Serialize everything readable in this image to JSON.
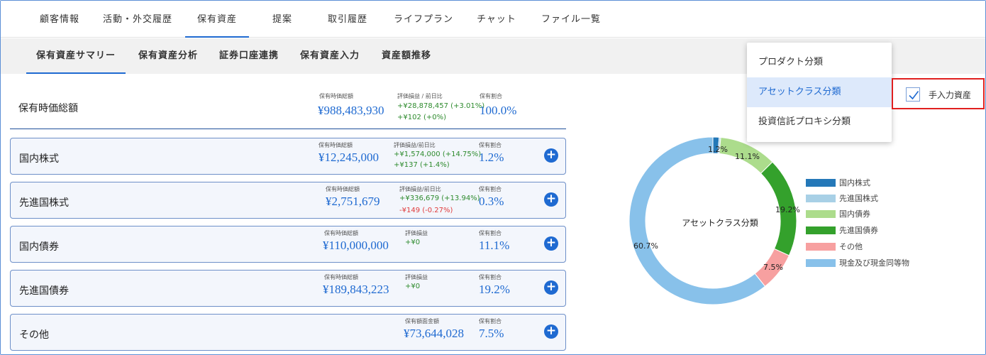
{
  "top_tabs": [
    {
      "label": "顧客情報"
    },
    {
      "label": "活動・外交履歴"
    },
    {
      "label": "保有資産"
    },
    {
      "label": "提案"
    },
    {
      "label": "取引履歴"
    },
    {
      "label": "ライフプラン"
    },
    {
      "label": "チャット"
    },
    {
      "label": "ファイル一覧"
    }
  ],
  "sub_tabs": [
    {
      "label": "保有資産サマリー"
    },
    {
      "label": "保有資産分析"
    },
    {
      "label": "証券口座連携"
    },
    {
      "label": "保有資産入力"
    },
    {
      "label": "資産額推移"
    }
  ],
  "total": {
    "label": "保有時価総額",
    "value_caption": "保有時価総額",
    "value": "¥988,483,930",
    "gain_caption": "評価損益 / 前日比",
    "gain": "+¥28,878,457 (+3.01%)",
    "daily": "+¥102 (+0%)",
    "ratio_caption": "保有割合",
    "ratio": "100.0%"
  },
  "assets": [
    {
      "label": "国内株式",
      "value_caption": "保有時価総額",
      "value": "¥12,245,000",
      "gain_caption": "評価損益/前日比",
      "gain": "+¥1,574,000 (+14.75%)",
      "daily": "+¥137 (+1.4%)",
      "ratio_caption": "保有割合",
      "ratio": "1.2%"
    },
    {
      "label": "先進国株式",
      "value_caption": "保有時価総額",
      "value": "¥2,751,679",
      "gain_caption": "評価損益/前日比",
      "gain": "+¥336,679 (+13.94%)",
      "daily": "-¥149 (-0.27%)",
      "ratio_caption": "保有割合",
      "ratio": "0.3%"
    },
    {
      "label": "国内債券",
      "value_caption": "保有時価総額",
      "value": "¥110,000,000",
      "gain_caption": "評価損益",
      "gain": "+¥0",
      "ratio_caption": "保有割合",
      "ratio": "11.1%"
    },
    {
      "label": "先進国債券",
      "value_caption": "保有時価総額",
      "value": "¥189,843,223",
      "gain_caption": "評価損益",
      "gain": "+¥0",
      "ratio_caption": "保有割合",
      "ratio": "19.2%"
    },
    {
      "label": "その他",
      "value_caption": "保有額面金額",
      "value": "¥73,644,028",
      "ratio_caption": "保有割合",
      "ratio": "7.5%"
    }
  ],
  "dropdown": {
    "items": [
      "プロダクト分類",
      "アセットクラス分類",
      "投資信託プロキシ分類"
    ],
    "selected": "アセットクラス分類"
  },
  "manual_assets": {
    "label": "手入力資産",
    "checked": true
  },
  "chart_data": {
    "type": "pie",
    "title": "アセットクラス分類",
    "donut": true,
    "legend_position": "right",
    "categories": [
      "国内株式",
      "先進国株式",
      "国内債券",
      "先進国債券",
      "その他",
      "現金及び現金同等物"
    ],
    "values": [
      1.2,
      0.3,
      11.1,
      19.2,
      7.5,
      60.7
    ],
    "value_labels": [
      "1.2%",
      "",
      "11.1%",
      "19.2%",
      "7.5%",
      "60.7%"
    ],
    "colors": [
      "#2478b8",
      "#a8d0e6",
      "#acdc8c",
      "#34a12c",
      "#f7a0a0",
      "#88c1ea"
    ]
  }
}
